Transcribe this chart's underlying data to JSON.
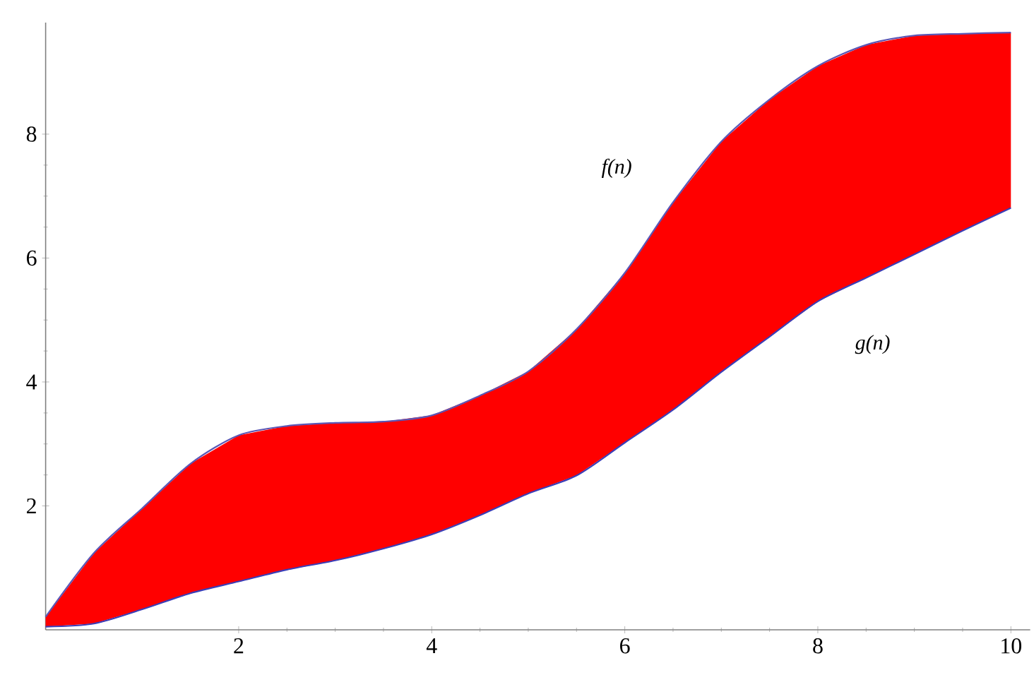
{
  "chart_data": {
    "type": "line",
    "x": [
      0,
      0.5,
      1,
      1.5,
      2,
      2.5,
      3,
      3.5,
      4,
      4.5,
      5,
      5.5,
      6,
      6.5,
      7,
      7.5,
      8,
      8.5,
      9,
      9.5,
      10
    ],
    "series": [
      {
        "color": "#5b57b5",
        "values": [
          0.21,
          1.24,
          1.96,
          2.68,
          3.14,
          3.29,
          3.34,
          3.36,
          3.46,
          3.78,
          4.17,
          4.85,
          5.76,
          6.9,
          7.88,
          8.56,
          9.1,
          9.44,
          9.59,
          9.62,
          9.64
        ],
        "upper": [
          0.21,
          1.24,
          1.96,
          2.68,
          3.14,
          3.29,
          3.34,
          3.36,
          3.46,
          3.78,
          4.17,
          4.85,
          5.76,
          6.9,
          7.88,
          8.56,
          9.1,
          9.44,
          9.59,
          9.62,
          9.64
        ],
        "lower": [
          0.05,
          0.1,
          0.33,
          0.59,
          0.78,
          0.97,
          1.12,
          1.31,
          1.54,
          1.85,
          2.2,
          2.49,
          3.02,
          3.55,
          4.16,
          4.73,
          5.3,
          5.68,
          6.06,
          6.44,
          6.81
        ]
      },
      {
        "color": "#3b3fb8",
        "values": [
          0.05,
          0.1,
          0.33,
          0.59,
          0.78,
          0.97,
          1.12,
          1.31,
          1.54,
          1.85,
          2.2,
          2.49,
          3.02,
          3.55,
          4.16,
          4.73,
          5.3,
          5.68,
          6.06,
          6.44,
          6.81
        ]
      }
    ],
    "annotations": [
      "f(n)",
      "g(n)"
    ],
    "xlim": [
      0,
      10.2
    ],
    "ylim": [
      0,
      9.8
    ],
    "xticks": [
      2,
      4,
      6,
      8,
      10
    ],
    "yticks": [
      2,
      4,
      6,
      8
    ],
    "grid": false,
    "marker": "none",
    "line_style": "solid"
  }
}
